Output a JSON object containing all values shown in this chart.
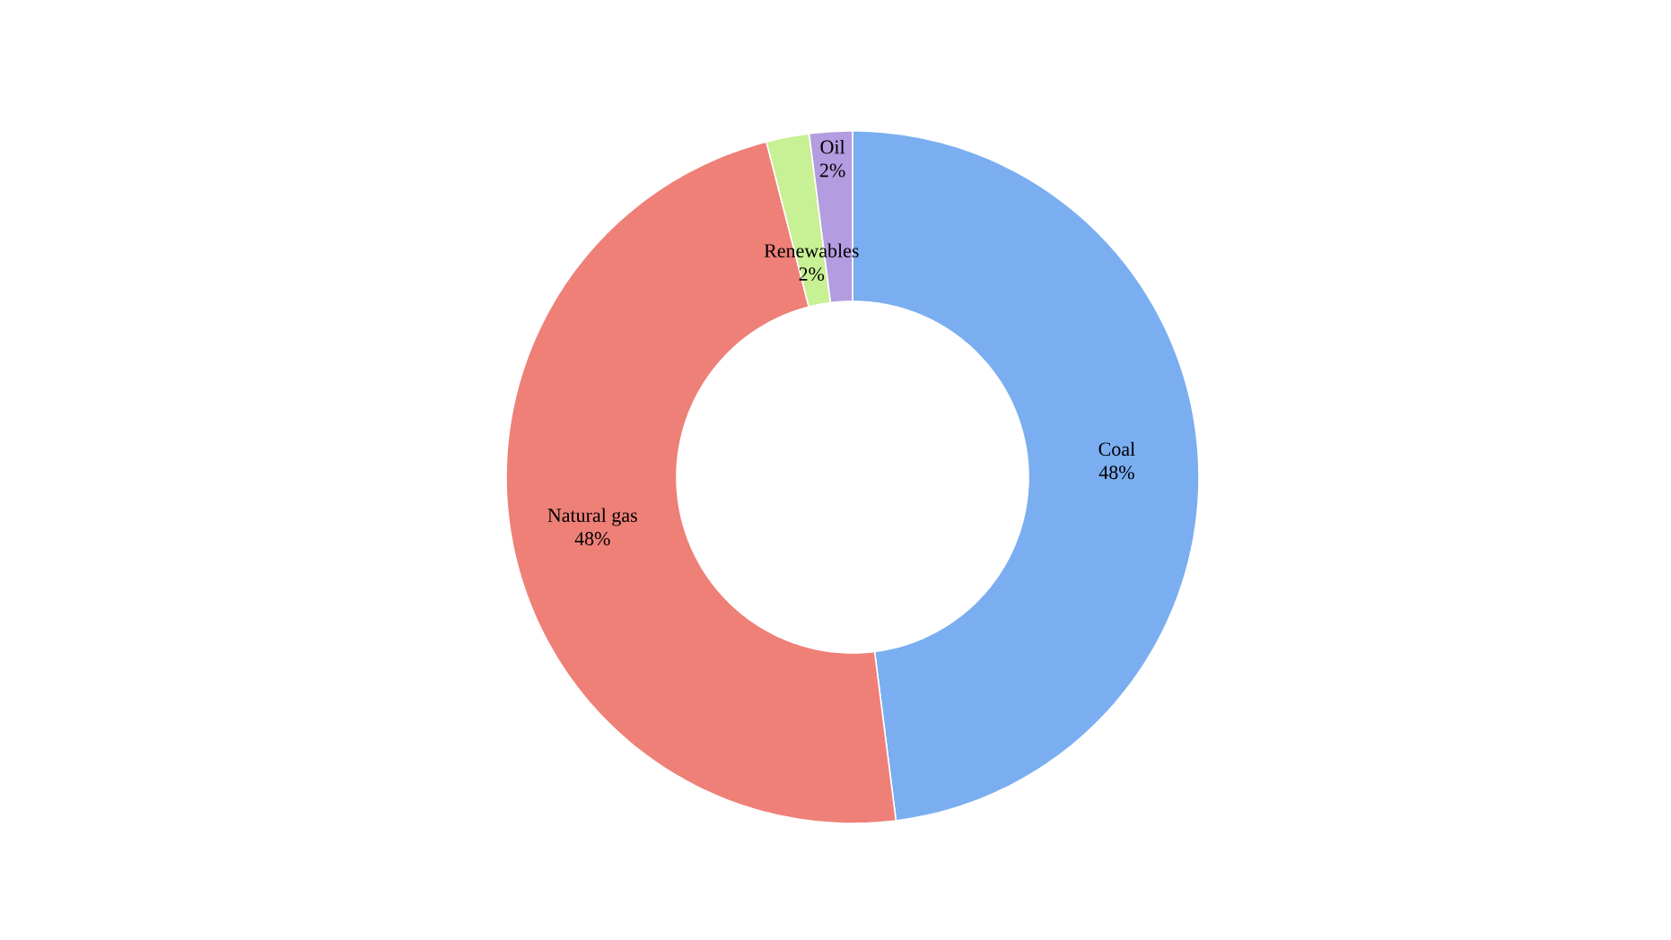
{
  "chart_data": {
    "type": "donut",
    "categories": [
      "Coal",
      "Natural gas",
      "Renewables",
      "Oil"
    ],
    "values": [
      48,
      48,
      2,
      2
    ],
    "value_labels": [
      "48%",
      "48%",
      "2%",
      "2%"
    ],
    "colors": [
      "#7aaef0",
      "#ee8078",
      "#c8f094",
      "#b49ce0"
    ]
  }
}
